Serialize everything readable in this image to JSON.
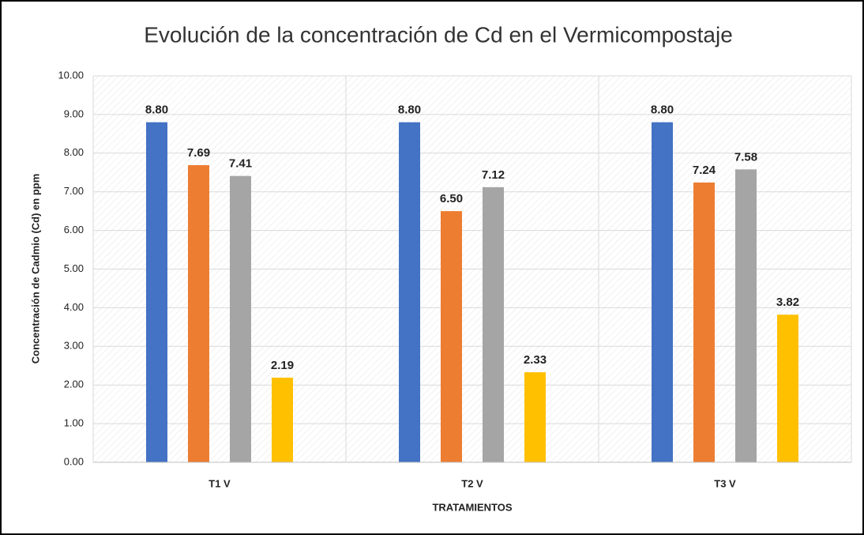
{
  "chart_data": {
    "type": "bar",
    "title": "Evolución de la concentración de Cd en el Vermicompostaje",
    "y_label": "Concentración de Cadmio (Cd) en ppm",
    "x_label": "TRATAMIENTOS",
    "categories": [
      "T1 V",
      "T2 V",
      "T3 V"
    ],
    "series": [
      {
        "color": "#4472c4",
        "values": [
          8.8,
          8.8,
          8.8
        ],
        "value_labels": [
          "8.80",
          "8.80",
          "8.80"
        ]
      },
      {
        "color": "#ed7d31",
        "values": [
          7.69,
          6.5,
          7.24
        ],
        "value_labels": [
          "7.69",
          "6.50",
          "7.24"
        ]
      },
      {
        "color": "#a5a5a5",
        "values": [
          7.41,
          7.12,
          7.58
        ],
        "value_labels": [
          "7.41",
          "7.12",
          "7.58"
        ]
      },
      {
        "color": "#ffc000",
        "values": [
          2.19,
          2.33,
          3.82
        ],
        "value_labels": [
          "2.19",
          "2.33",
          "3.82"
        ]
      }
    ],
    "ylim": [
      0,
      10
    ],
    "yticks": [
      {
        "value": 0,
        "label": "0.00"
      },
      {
        "value": 1,
        "label": "1.00"
      },
      {
        "value": 2,
        "label": "2.00"
      },
      {
        "value": 3,
        "label": "3.00"
      },
      {
        "value": 4,
        "label": "4.00"
      },
      {
        "value": 5,
        "label": "5.00"
      },
      {
        "value": 6,
        "label": "6.00"
      },
      {
        "value": 7,
        "label": "7.00"
      },
      {
        "value": 8,
        "label": "8.00"
      },
      {
        "value": 9,
        "label": "9.00"
      },
      {
        "value": 10,
        "label": "10.00"
      }
    ],
    "grid": true
  }
}
